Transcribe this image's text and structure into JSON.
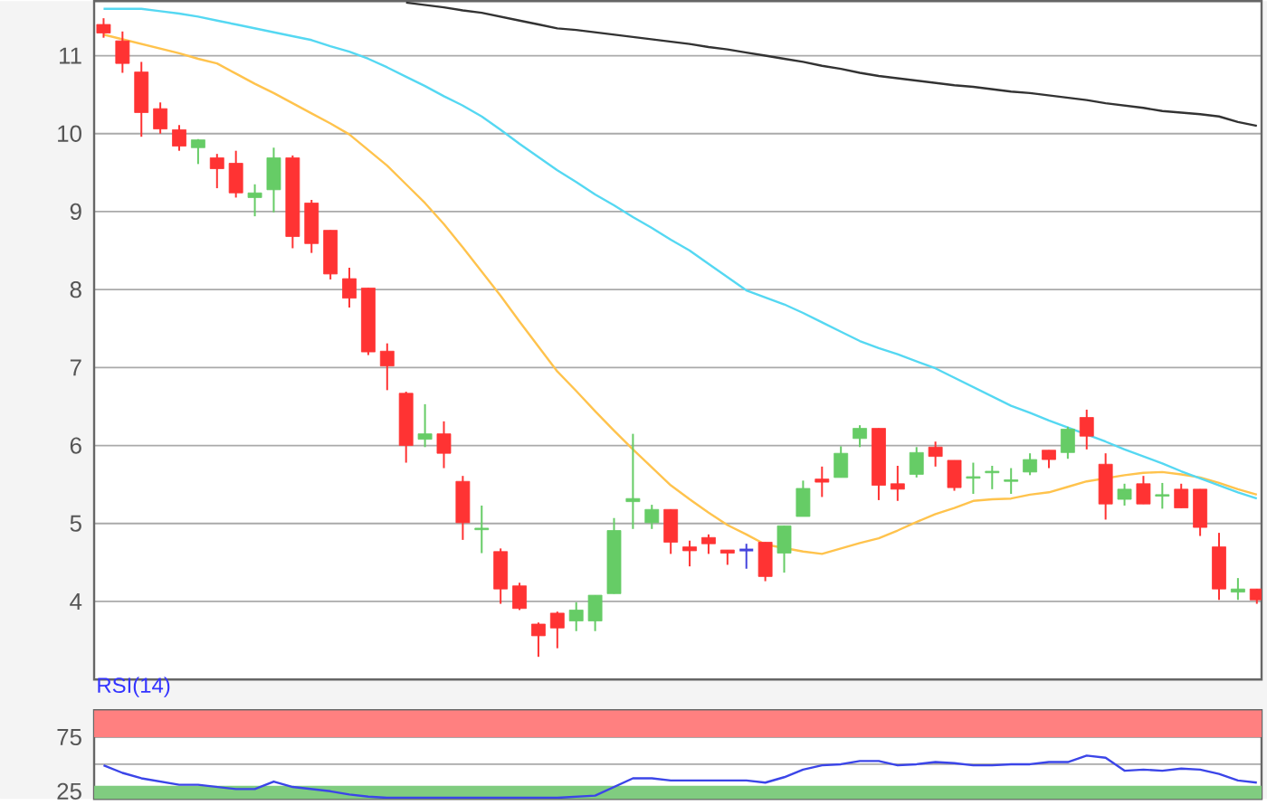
{
  "chart_data": [
    {
      "type": "candlestick",
      "categories": [
        null,
        null,
        null,
        null,
        null,
        null,
        null,
        null,
        null,
        null,
        null,
        null,
        null,
        null,
        null,
        null,
        null,
        null,
        null,
        null,
        null,
        null,
        null,
        null,
        null,
        null,
        null,
        null,
        null,
        null,
        null,
        null,
        null,
        null,
        null,
        null,
        null,
        null,
        null,
        null,
        null,
        null,
        null,
        null,
        null,
        null,
        null,
        null,
        null,
        null,
        null,
        null,
        null,
        null,
        null,
        null,
        null,
        null,
        null,
        null,
        null,
        null
      ],
      "ohlc": [
        [
          11.4,
          11.48,
          11.23,
          11.29
        ],
        [
          11.19,
          11.31,
          10.78,
          10.9
        ],
        [
          10.79,
          10.92,
          9.96,
          10.27
        ],
        [
          10.32,
          10.4,
          10.0,
          10.06
        ],
        [
          10.05,
          10.11,
          9.78,
          9.84
        ],
        [
          9.82,
          9.93,
          9.61,
          9.92
        ],
        [
          9.69,
          9.74,
          9.3,
          9.55
        ],
        [
          9.62,
          9.78,
          9.18,
          9.24
        ],
        [
          9.18,
          9.35,
          8.94,
          9.24
        ],
        [
          9.28,
          9.82,
          8.99,
          9.69
        ],
        [
          9.69,
          9.72,
          8.53,
          8.68
        ],
        [
          9.11,
          9.15,
          8.47,
          8.59
        ],
        [
          8.76,
          8.76,
          8.13,
          8.2
        ],
        [
          8.14,
          8.28,
          7.77,
          7.89
        ],
        [
          8.02,
          8.02,
          7.16,
          7.2
        ],
        [
          7.21,
          7.31,
          6.71,
          7.02
        ],
        [
          6.67,
          6.69,
          5.78,
          6.0
        ],
        [
          6.08,
          6.53,
          5.98,
          6.15
        ],
        [
          6.15,
          6.31,
          5.71,
          5.9
        ],
        [
          5.54,
          5.61,
          4.79,
          5.01
        ],
        [
          4.92,
          5.23,
          4.62,
          4.94
        ],
        [
          4.64,
          4.68,
          3.97,
          4.16
        ],
        [
          4.2,
          4.24,
          3.89,
          3.91
        ],
        [
          3.71,
          3.73,
          3.29,
          3.56
        ],
        [
          3.85,
          3.87,
          3.4,
          3.66
        ],
        [
          3.75,
          3.99,
          3.62,
          3.89
        ],
        [
          3.75,
          4.08,
          3.62,
          4.08
        ],
        [
          4.1,
          5.07,
          4.1,
          4.91
        ],
        [
          5.28,
          6.15,
          4.93,
          5.32
        ],
        [
          5.01,
          5.24,
          4.93,
          5.18
        ],
        [
          5.18,
          5.18,
          4.61,
          4.76
        ],
        [
          4.7,
          4.78,
          4.45,
          4.65
        ],
        [
          4.82,
          4.86,
          4.61,
          4.74
        ],
        [
          4.66,
          4.66,
          4.47,
          4.62
        ],
        [
          4.66,
          4.74,
          4.42,
          4.66
        ],
        [
          4.76,
          4.76,
          4.26,
          4.32
        ],
        [
          4.62,
          4.97,
          4.37,
          4.97
        ],
        [
          5.09,
          5.55,
          5.09,
          5.45
        ],
        [
          5.57,
          5.73,
          5.34,
          5.53
        ],
        [
          5.59,
          5.99,
          5.59,
          5.9
        ],
        [
          6.09,
          6.26,
          5.98,
          6.22
        ],
        [
          6.22,
          6.22,
          5.3,
          5.49
        ],
        [
          5.51,
          5.74,
          5.29,
          5.44
        ],
        [
          5.63,
          5.98,
          5.59,
          5.91
        ],
        [
          5.98,
          6.05,
          5.73,
          5.86
        ],
        [
          5.81,
          5.81,
          5.42,
          5.46
        ],
        [
          5.58,
          5.78,
          5.38,
          5.6
        ],
        [
          5.65,
          5.74,
          5.44,
          5.67
        ],
        [
          5.54,
          5.71,
          5.38,
          5.56
        ],
        [
          5.66,
          5.9,
          5.62,
          5.82
        ],
        [
          5.94,
          5.94,
          5.71,
          5.82
        ],
        [
          5.91,
          6.24,
          5.83,
          6.21
        ],
        [
          6.36,
          6.46,
          5.95,
          6.12
        ],
        [
          5.76,
          5.9,
          5.05,
          5.25
        ],
        [
          5.31,
          5.51,
          5.23,
          5.44
        ],
        [
          5.51,
          5.61,
          5.25,
          5.25
        ],
        [
          5.35,
          5.52,
          5.19,
          5.37
        ],
        [
          5.44,
          5.51,
          5.2,
          5.2
        ],
        [
          5.44,
          5.44,
          4.84,
          4.95
        ],
        [
          4.7,
          4.88,
          4.02,
          4.16
        ],
        [
          4.12,
          4.3,
          4.02,
          4.16
        ],
        [
          4.16,
          4.16,
          3.97,
          4.02
        ]
      ],
      "colors": [
        "#ff3333",
        "#ff3333",
        "#ff3333",
        "#ff3333",
        "#ff3333",
        "#66cc66",
        "#ff3333",
        "#ff3333",
        "#66cc66",
        "#66cc66",
        "#ff3333",
        "#ff3333",
        "#ff3333",
        "#ff3333",
        "#ff3333",
        "#ff3333",
        "#ff3333",
        "#66cc66",
        "#ff3333",
        "#ff3333",
        "#66cc66",
        "#ff3333",
        "#ff3333",
        "#ff3333",
        "#ff3333",
        "#66cc66",
        "#66cc66",
        "#66cc66",
        "#66cc66",
        "#66cc66",
        "#ff3333",
        "#ff3333",
        "#ff3333",
        "#ff3333",
        "#4444dd",
        "#ff3333",
        "#66cc66",
        "#66cc66",
        "#ff3333",
        "#66cc66",
        "#66cc66",
        "#ff3333",
        "#ff3333",
        "#66cc66",
        "#ff3333",
        "#ff3333",
        "#66cc66",
        "#66cc66",
        "#66cc66",
        "#66cc66",
        "#ff3333",
        "#66cc66",
        "#ff3333",
        "#ff3333",
        "#66cc66",
        "#ff3333",
        "#66cc66",
        "#ff3333",
        "#ff3333",
        "#ff3333",
        "#66cc66",
        "#ff3333"
      ],
      "series": [
        {
          "type": "line",
          "color": "#ffc34d",
          "values": [
            11.27,
            11.21,
            11.15,
            11.09,
            11.03,
            10.96,
            10.9,
            10.77,
            10.64,
            10.52,
            10.39,
            10.26,
            10.13,
            9.99,
            9.79,
            9.59,
            9.35,
            9.11,
            8.84,
            8.54,
            8.23,
            7.92,
            7.59,
            7.27,
            6.95,
            6.7,
            6.44,
            6.19,
            5.95,
            5.72,
            5.49,
            5.31,
            5.14,
            4.98,
            4.86,
            4.73,
            null,
            4.64,
            4.61,
            4.68,
            4.75,
            4.81,
            4.91,
            5.02,
            5.12,
            5.2,
            5.29,
            5.31,
            5.32,
            5.37,
            5.4,
            5.47,
            5.54,
            null,
            5.62,
            5.65,
            5.66,
            5.63,
            5.59,
            5.52,
            5.44,
            5.37
          ]
        },
        {
          "type": "line",
          "color": "#55d8f2",
          "values": [
            11.6,
            11.6,
            11.6,
            11.57,
            11.54,
            11.5,
            11.45,
            11.4,
            11.35,
            11.3,
            11.25,
            11.2,
            11.12,
            11.05,
            10.96,
            10.85,
            10.73,
            10.61,
            10.48,
            10.36,
            10.22,
            10.05,
            9.87,
            9.7,
            9.53,
            9.38,
            9.22,
            9.08,
            8.93,
            8.79,
            8.64,
            8.5,
            8.33,
            8.16,
            7.99,
            7.9,
            7.81,
            7.7,
            7.58,
            7.46,
            7.34,
            7.25,
            7.17,
            7.08,
            6.99,
            6.87,
            6.75,
            6.63,
            6.51,
            6.42,
            6.32,
            6.23,
            6.14,
            6.05,
            5.95,
            5.86,
            5.77,
            5.67,
            5.58,
            5.49,
            5.4,
            5.32
          ]
        },
        {
          "type": "line",
          "color": "#333333",
          "values": [
            null,
            null,
            null,
            null,
            null,
            null,
            null,
            null,
            null,
            null,
            null,
            null,
            null,
            null,
            null,
            null,
            11.68,
            11.65,
            11.62,
            11.58,
            11.55,
            11.5,
            11.45,
            11.4,
            11.35,
            11.33,
            11.3,
            11.27,
            11.24,
            11.21,
            11.18,
            11.15,
            11.11,
            11.08,
            11.04,
            11.0,
            10.96,
            10.92,
            10.87,
            10.83,
            10.78,
            10.74,
            10.71,
            10.68,
            10.65,
            10.62,
            10.6,
            10.57,
            10.54,
            10.52,
            10.49,
            10.46,
            10.43,
            10.39,
            10.36,
            10.33,
            10.29,
            10.27,
            10.25,
            10.22,
            10.15,
            10.1
          ]
        }
      ],
      "ylim": [
        3,
        11.7
      ],
      "yticks": [
        4,
        5,
        6,
        7,
        8,
        9,
        10,
        11
      ],
      "grid": "y",
      "tick_labels": "y"
    },
    {
      "type": "line",
      "title": "RSI(14)",
      "categories": [
        null,
        null,
        null,
        null,
        null,
        null,
        null,
        null,
        null,
        null,
        null,
        null,
        null,
        null,
        null,
        null,
        null,
        null,
        null,
        null,
        null,
        null,
        null,
        null,
        null,
        null,
        null,
        null,
        null,
        null,
        null,
        null,
        null,
        null,
        null,
        null,
        null,
        null,
        null,
        null,
        null,
        null,
        null,
        null,
        null,
        null,
        null,
        null,
        null,
        null,
        null,
        null,
        null,
        null,
        null,
        null,
        null,
        null,
        null,
        null,
        null,
        null
      ],
      "series": [
        {
          "color": "#3b45e8",
          "values": [
            49,
            42,
            37,
            34,
            31,
            31,
            29,
            27,
            27,
            34,
            29,
            27,
            25,
            22,
            20,
            19,
            19,
            19,
            19,
            19,
            19,
            19,
            19,
            19,
            19,
            20,
            21,
            29,
            37,
            37,
            35,
            35,
            35,
            35,
            35,
            33,
            38,
            45,
            49,
            50,
            53,
            53,
            49,
            50,
            52,
            51,
            49,
            49,
            50,
            50,
            52,
            52,
            58,
            56,
            44,
            45,
            44,
            46,
            45,
            41,
            35,
            33
          ]
        }
      ],
      "ylim": [
        18,
        100
      ],
      "yticks": [
        25,
        {
          "value": 50,
          "label": null
        },
        75
      ],
      "bands": [
        {
          "axis": "y",
          "from": 75,
          "to": 100,
          "color": "#ff8080"
        },
        {
          "axis": "y",
          "from": 0,
          "to": 30,
          "color": "#80cc80"
        }
      ],
      "grid": "y",
      "tick_labels": "y"
    }
  ]
}
